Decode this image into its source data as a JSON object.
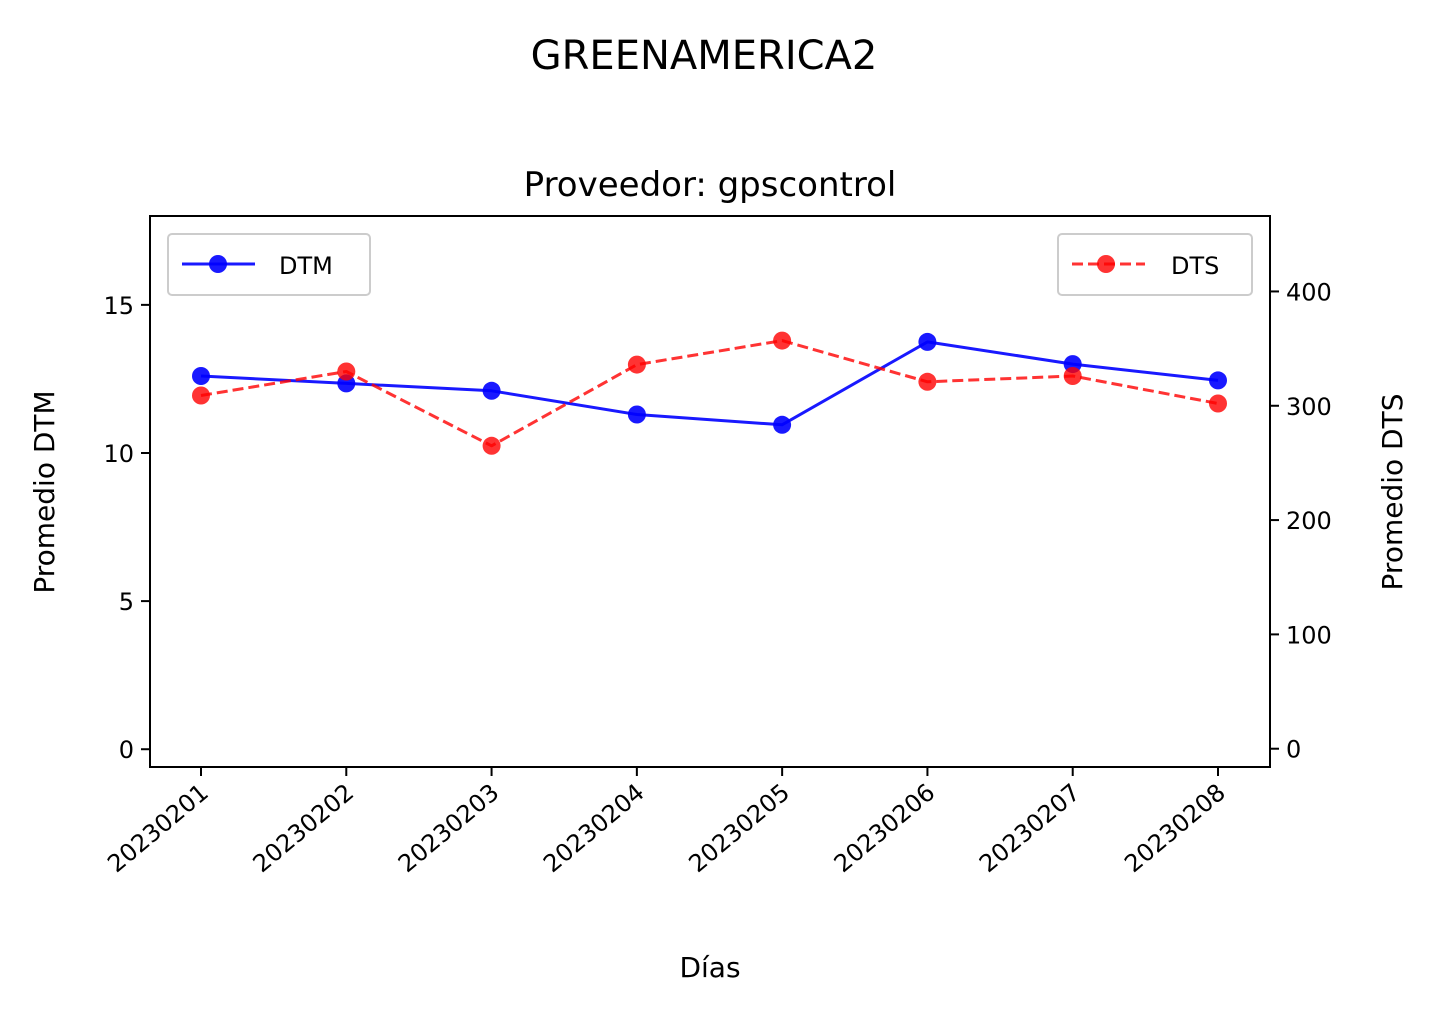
{
  "figure": {
    "suptitle": "GREENAMERICA2"
  },
  "chart_data": {
    "type": "line",
    "title": "Proveedor: gpscontrol",
    "xlabel": "Días",
    "ylabel_left": "Promedio DTM",
    "ylabel_right": "Promedio DTS",
    "categories": [
      "20230201",
      "20230202",
      "20230203",
      "20230204",
      "20230205",
      "20230206",
      "20230207",
      "20230208"
    ],
    "y_left": {
      "lim": [
        -0.6,
        18.0
      ],
      "ticks": [
        0,
        5,
        10,
        15
      ]
    },
    "y_right": {
      "lim": [
        -16,
        466
      ],
      "ticks": [
        0,
        100,
        200,
        300,
        400
      ]
    },
    "grid": false,
    "series": [
      {
        "name": "DTM",
        "axis": "left",
        "color": "#0000ff",
        "line_style": "solid",
        "marker": "circle",
        "legend_position": "upper-left",
        "values": [
          12.6,
          12.35,
          12.1,
          11.3,
          10.95,
          13.75,
          13.0,
          12.45
        ]
      },
      {
        "name": "DTS",
        "axis": "right",
        "color": "#ff0000",
        "line_style": "dashed",
        "marker": "circle",
        "legend_position": "upper-right",
        "values": [
          309,
          330,
          265,
          336,
          357,
          321,
          326,
          302
        ]
      }
    ]
  }
}
